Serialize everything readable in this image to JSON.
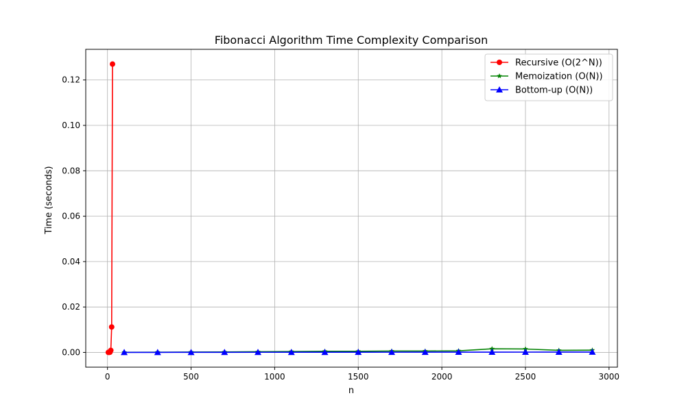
{
  "chart_data": {
    "type": "line",
    "title": "Fibonacci Algorithm Time Complexity Comparison",
    "xlabel": "n",
    "ylabel": "Time (seconds)",
    "xlim": [
      -130,
      3050
    ],
    "ylim": [
      -0.0065,
      0.1335
    ],
    "x_ticks": [
      0,
      500,
      1000,
      1500,
      2000,
      2500,
      3000
    ],
    "x_tick_labels": [
      "0",
      "500",
      "1000",
      "1500",
      "2000",
      "2500",
      "3000"
    ],
    "y_ticks": [
      0.0,
      0.02,
      0.04,
      0.06,
      0.08,
      0.1,
      0.12
    ],
    "y_tick_labels": [
      "0.00",
      "0.02",
      "0.04",
      "0.06",
      "0.08",
      "0.10",
      "0.12"
    ],
    "grid": true,
    "legend_position": "top-right",
    "series": [
      {
        "name": "Recursive (O(2^N))",
        "color": "#ff0000",
        "marker": "circle",
        "x": [
          5,
          10,
          15,
          20,
          25,
          30
        ],
        "y": [
          1e-05,
          2e-05,
          0.0001,
          0.0009,
          0.0112,
          0.127
        ]
      },
      {
        "name": "Memoization (O(N))",
        "color": "#008000",
        "marker": "star",
        "x": [
          100,
          300,
          500,
          700,
          900,
          1100,
          1300,
          1500,
          1700,
          1900,
          2100,
          2300,
          2500,
          2700,
          2900
        ],
        "y": [
          5e-05,
          0.0001,
          0.00015,
          0.0002,
          0.0003,
          0.0004,
          0.0005,
          0.0005,
          0.0006,
          0.0006,
          0.0007,
          0.0016,
          0.0015,
          0.0009,
          0.001
        ]
      },
      {
        "name": "Bottom-up (O(N))",
        "color": "#0000ff",
        "marker": "triangle",
        "x": [
          100,
          300,
          500,
          700,
          900,
          1100,
          1300,
          1500,
          1700,
          1900,
          2100,
          2300,
          2500,
          2700,
          2900
        ],
        "y": [
          1e-05,
          2e-05,
          4e-05,
          5e-05,
          6e-05,
          7e-05,
          8e-05,
          9e-05,
          0.0001,
          0.00011,
          0.00012,
          0.00013,
          0.00014,
          0.00015,
          0.00016
        ]
      }
    ]
  }
}
